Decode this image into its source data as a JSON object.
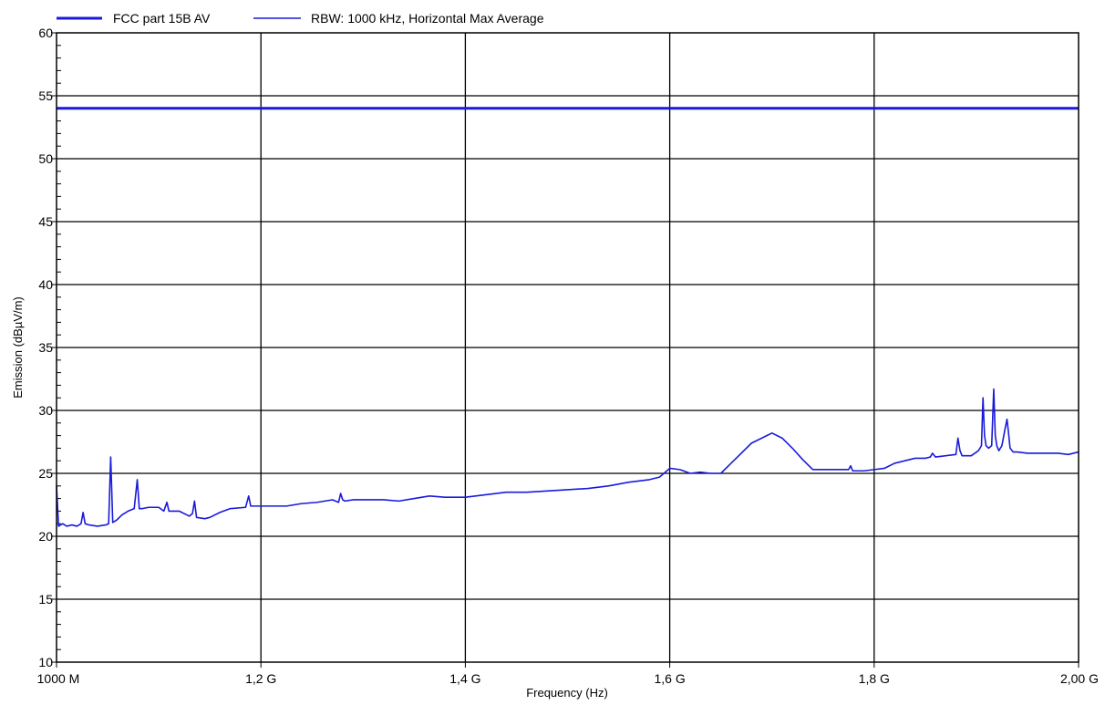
{
  "chart_data": {
    "type": "line",
    "xlabel": "Frequency (Hz)",
    "ylabel": "Emission (dBµV/m)",
    "xlim": [
      1000000000,
      2000000000
    ],
    "ylim": [
      10,
      60
    ],
    "x_ticks": [
      {
        "value": 1000000000,
        "label": "1000 M"
      },
      {
        "value": 1200000000,
        "label": "1,2 G"
      },
      {
        "value": 1400000000,
        "label": "1,4 G"
      },
      {
        "value": 1600000000,
        "label": "1,6 G"
      },
      {
        "value": 1800000000,
        "label": "1,8 G"
      },
      {
        "value": 2000000000,
        "label": "2,00 G"
      }
    ],
    "y_ticks": [
      10,
      15,
      20,
      25,
      30,
      35,
      40,
      45,
      50,
      55,
      60
    ],
    "grid": true,
    "legend_position": "top-left",
    "series": [
      {
        "name": "FCC part 15B AV",
        "color": "#1a1adc",
        "style": "limit-line",
        "x": [
          1000000000,
          2000000000
        ],
        "y": [
          54,
          54
        ]
      },
      {
        "name": "RBW: 1000 kHz, Horizontal Max Average",
        "color": "#1a1adc",
        "style": "trace",
        "x": [
          1000000000,
          1002000000,
          1006000000,
          1010000000,
          1015000000,
          1020000000,
          1024000000,
          1026000000,
          1028000000,
          1032000000,
          1040000000,
          1048000000,
          1051000000,
          1053000000,
          1055000000,
          1059000000,
          1064000000,
          1070000000,
          1076000000,
          1079000000,
          1081000000,
          1084000000,
          1090000000,
          1100000000,
          1105000000,
          1108000000,
          1110000000,
          1120000000,
          1130000000,
          1133000000,
          1135000000,
          1137000000,
          1145000000,
          1150000000,
          1160000000,
          1170000000,
          1185000000,
          1188000000,
          1190000000,
          1195000000,
          1210000000,
          1225000000,
          1240000000,
          1255000000,
          1270000000,
          1276000000,
          1278000000,
          1280000000,
          1282000000,
          1290000000,
          1300000000,
          1320000000,
          1335000000,
          1350000000,
          1365000000,
          1380000000,
          1400000000,
          1420000000,
          1440000000,
          1460000000,
          1480000000,
          1500000000,
          1520000000,
          1540000000,
          1560000000,
          1580000000,
          1590000000,
          1600000000,
          1610000000,
          1620000000,
          1630000000,
          1640000000,
          1650000000,
          1660000000,
          1670000000,
          1680000000,
          1690000000,
          1700000000,
          1710000000,
          1720000000,
          1730000000,
          1740000000,
          1750000000,
          1760000000,
          1770000000,
          1775000000,
          1777000000,
          1779000000,
          1790000000,
          1800000000,
          1810000000,
          1820000000,
          1830000000,
          1840000000,
          1850000000,
          1855000000,
          1857000000,
          1860000000,
          1870000000,
          1880000000,
          1882000000,
          1884000000,
          1886000000,
          1895000000,
          1902000000,
          1905000000,
          1906500000,
          1908000000,
          1909500000,
          1912000000,
          1915000000,
          1917000000,
          1918500000,
          1920000000,
          1922000000,
          1925000000,
          1928000000,
          1930000000,
          1931500000,
          1933000000,
          1936000000,
          1940000000,
          1950000000,
          1960000000,
          1970000000,
          1980000000,
          1990000000,
          2000000000
        ],
        "y": [
          24.0,
          20.8,
          21.0,
          20.8,
          20.9,
          20.8,
          21.0,
          21.9,
          21.0,
          20.9,
          20.8,
          20.9,
          21.0,
          26.3,
          21.1,
          21.3,
          21.7,
          22.0,
          22.2,
          24.5,
          22.2,
          22.2,
          22.3,
          22.3,
          22.0,
          22.7,
          22.0,
          22.0,
          21.6,
          21.8,
          22.8,
          21.5,
          21.4,
          21.5,
          21.9,
          22.2,
          22.3,
          23.2,
          22.4,
          22.4,
          22.4,
          22.4,
          22.6,
          22.7,
          22.9,
          22.7,
          23.4,
          22.9,
          22.8,
          22.9,
          22.9,
          22.9,
          22.8,
          23.0,
          23.2,
          23.1,
          23.1,
          23.3,
          23.5,
          23.5,
          23.6,
          23.7,
          23.8,
          24.0,
          24.3,
          24.5,
          24.7,
          25.4,
          25.3,
          25.0,
          25.1,
          25.0,
          25.0,
          25.8,
          26.6,
          27.4,
          27.8,
          28.2,
          27.8,
          27.0,
          26.1,
          25.3,
          25.3,
          25.3,
          25.3,
          25.3,
          25.6,
          25.2,
          25.2,
          25.3,
          25.4,
          25.8,
          26.0,
          26.2,
          26.2,
          26.3,
          26.6,
          26.3,
          26.4,
          26.5,
          27.8,
          26.8,
          26.4,
          26.4,
          26.8,
          27.2,
          31.0,
          28.0,
          27.2,
          27.0,
          27.2,
          31.7,
          28.0,
          27.2,
          26.8,
          27.2,
          28.5,
          29.3,
          28.2,
          27.0,
          26.7,
          26.7,
          26.6,
          26.6,
          26.6,
          26.6,
          26.5,
          26.7
        ]
      }
    ]
  }
}
